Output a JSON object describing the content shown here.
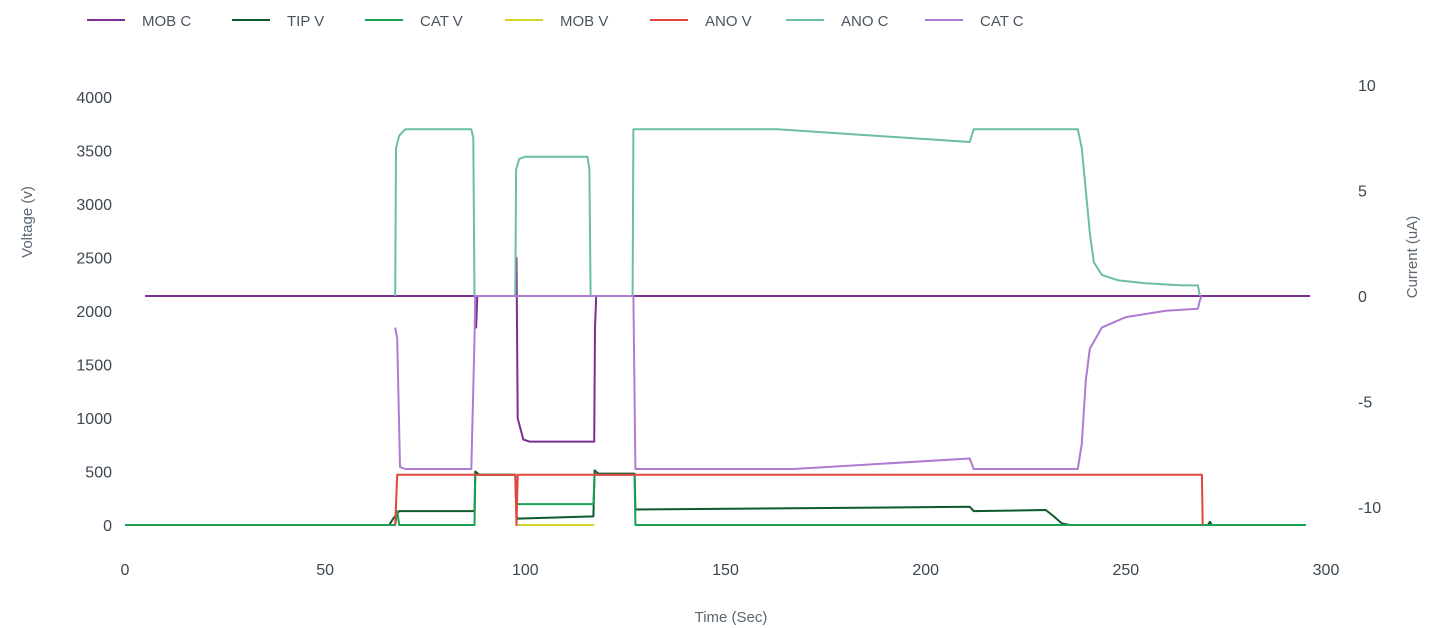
{
  "chart_data": {
    "type": "line",
    "title": "",
    "xlabel": "Time (Sec)",
    "ylabel_left": "Voltage (v)",
    "ylabel_right": "Current (uA)",
    "xlim": [
      0,
      305
    ],
    "ylim_left": [
      0,
      4000
    ],
    "ylim_right": [
      -11.5,
      10
    ],
    "x_ticks": [
      0,
      50,
      100,
      150,
      200,
      250,
      300
    ],
    "y_ticks_left": [
      0,
      500,
      1000,
      1500,
      2000,
      2500,
      3000,
      3500,
      4000
    ],
    "y_ticks_right": [
      -10,
      -5,
      0,
      5,
      10
    ],
    "grid": false,
    "legend_position": "top-left",
    "series": [
      {
        "name": "MOB C",
        "axis": "right",
        "color": "#7b2f8e",
        "points": [
          [
            5,
            0
          ],
          [
            87.5,
            0
          ],
          [
            87.7,
            -1.5
          ],
          [
            88,
            0
          ],
          [
            97.5,
            0
          ],
          [
            97.8,
            1.8
          ],
          [
            98.1,
            -5.8
          ],
          [
            99.5,
            -6.8
          ],
          [
            101,
            -6.9
          ],
          [
            117.2,
            -6.9
          ],
          [
            117.4,
            -1.5
          ],
          [
            117.7,
            0
          ],
          [
            296,
            0
          ]
        ]
      },
      {
        "name": "TIP V",
        "axis": "left",
        "color": "#0f5a2c",
        "points": [
          [
            0,
            0
          ],
          [
            66,
            0
          ],
          [
            67,
            60
          ],
          [
            68.5,
            130
          ],
          [
            87.3,
            130
          ],
          [
            87.5,
            500
          ],
          [
            88.5,
            470
          ],
          [
            97.5,
            470
          ],
          [
            97.8,
            80
          ],
          [
            98.1,
            60
          ],
          [
            117,
            80
          ],
          [
            117.3,
            510
          ],
          [
            118.2,
            480
          ],
          [
            127.3,
            480
          ],
          [
            127.5,
            145
          ],
          [
            211,
            170
          ],
          [
            212,
            130
          ],
          [
            230,
            140
          ],
          [
            232,
            80
          ],
          [
            234,
            15
          ],
          [
            236,
            0
          ],
          [
            270.5,
            0
          ],
          [
            271,
            30
          ],
          [
            271.5,
            0
          ],
          [
            295,
            0
          ]
        ]
      },
      {
        "name": "CAT V",
        "axis": "left",
        "color": "#1aa052",
        "points": [
          [
            0,
            0
          ],
          [
            67.5,
            0
          ],
          [
            68,
            130
          ],
          [
            68.5,
            0
          ],
          [
            87.3,
            0
          ],
          [
            87.5,
            470
          ],
          [
            97.5,
            470
          ],
          [
            97.8,
            195
          ],
          [
            117,
            195
          ],
          [
            117.3,
            470
          ],
          [
            127.3,
            470
          ],
          [
            127.5,
            0
          ],
          [
            295,
            0
          ]
        ]
      },
      {
        "name": "MOB V",
        "axis": "left",
        "color": "#d3d32a",
        "points": [
          [
            97.6,
            0
          ],
          [
            117.2,
            0
          ]
        ]
      },
      {
        "name": "ANO V",
        "axis": "left",
        "color": "#e2453b",
        "points": [
          [
            67.5,
            0
          ],
          [
            68,
            470
          ],
          [
            87.5,
            470
          ],
          [
            97.5,
            470
          ],
          [
            97.8,
            0
          ],
          [
            98.1,
            470
          ],
          [
            117.3,
            470
          ],
          [
            127.5,
            470
          ],
          [
            269,
            470
          ],
          [
            269.2,
            0
          ]
        ]
      },
      {
        "name": "ANO C",
        "axis": "right",
        "color": "#6cbf9f",
        "points": [
          [
            67.5,
            0
          ],
          [
            67.7,
            7
          ],
          [
            68.5,
            7.6
          ],
          [
            70,
            7.9
          ],
          [
            86.5,
            7.9
          ],
          [
            87,
            7.5
          ],
          [
            87.3,
            0
          ],
          [
            97.5,
            0
          ],
          [
            97.7,
            6
          ],
          [
            98.5,
            6.5
          ],
          [
            100,
            6.6
          ],
          [
            115.5,
            6.6
          ],
          [
            116,
            6
          ],
          [
            116.3,
            0
          ],
          [
            126.8,
            0
          ],
          [
            127,
            7.9
          ],
          [
            163,
            7.9
          ],
          [
            211,
            7.3
          ],
          [
            212,
            7.9
          ],
          [
            238,
            7.9
          ],
          [
            239,
            7
          ],
          [
            241,
            3
          ],
          [
            242,
            1.6
          ],
          [
            244,
            1
          ],
          [
            248,
            0.75
          ],
          [
            255,
            0.6
          ],
          [
            264,
            0.5
          ],
          [
            268,
            0.5
          ],
          [
            268.5,
            0
          ]
        ]
      },
      {
        "name": "CAT C",
        "axis": "right",
        "color": "#b07ad0",
        "points": [
          [
            67.5,
            -1.5
          ],
          [
            68,
            -2
          ],
          [
            68.7,
            -8.1
          ],
          [
            70,
            -8.2
          ],
          [
            86.5,
            -8.2
          ],
          [
            87.3,
            -2
          ],
          [
            87.5,
            0
          ],
          [
            97.5,
            0
          ],
          [
            117.5,
            0
          ],
          [
            127,
            0
          ],
          [
            127.5,
            -8.2
          ],
          [
            167,
            -8.2
          ],
          [
            211,
            -7.7
          ],
          [
            212,
            -8.2
          ],
          [
            238,
            -8.2
          ],
          [
            239,
            -7
          ],
          [
            240,
            -4
          ],
          [
            241,
            -2.5
          ],
          [
            244,
            -1.5
          ],
          [
            250,
            -1
          ],
          [
            260,
            -0.7
          ],
          [
            268,
            -0.6
          ],
          [
            268.5,
            -0.2
          ],
          [
            269,
            0
          ]
        ]
      }
    ]
  }
}
